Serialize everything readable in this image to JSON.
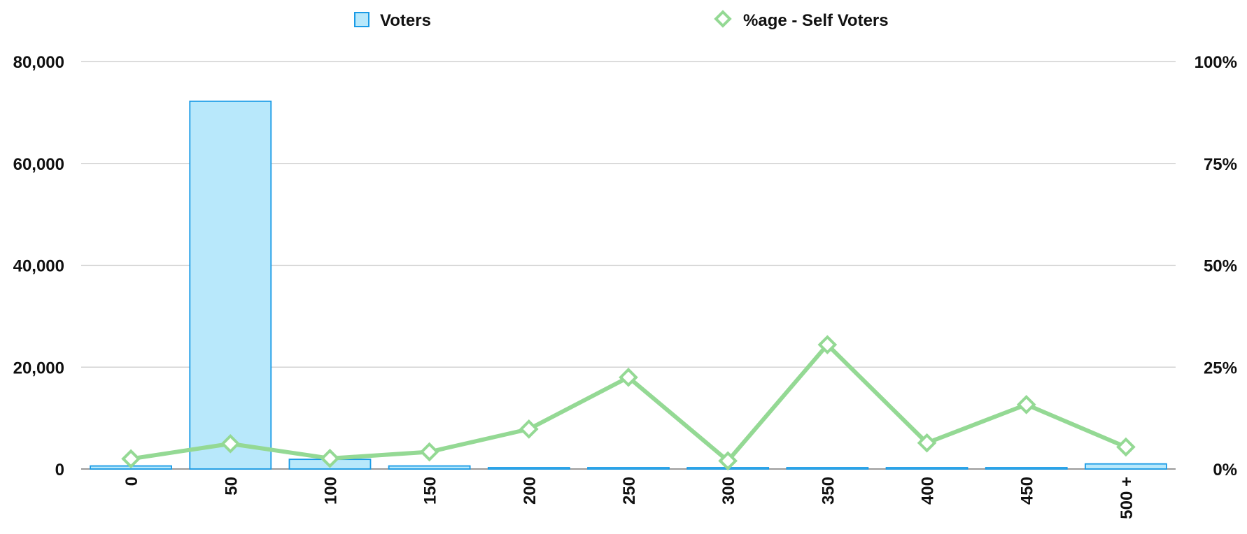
{
  "chart_data": {
    "type": "bar",
    "categories": [
      "0",
      "50",
      "100",
      "150",
      "200",
      "250",
      "300",
      "350",
      "400",
      "450",
      "500 +"
    ],
    "series": [
      {
        "name": "Voters",
        "type": "bar",
        "axis": "left",
        "values": [
          600,
          72200,
          1900,
          600,
          0,
          0,
          200,
          0,
          0,
          0,
          1000
        ],
        "color": "#b8e8fb",
        "stroke": "#1a9be6"
      },
      {
        "name": "%age - Self Voters",
        "type": "line",
        "axis": "right",
        "unit": "%",
        "values": [
          2.5,
          6.2,
          2.6,
          4.2,
          9.8,
          22.5,
          2.0,
          30.5,
          6.4,
          15.8,
          5.4
        ],
        "color": "#94d994"
      }
    ],
    "y_left": {
      "min": 0,
      "max": 80000,
      "ticks": [
        0,
        20000,
        40000,
        60000,
        80000
      ],
      "tick_labels": [
        "0",
        "20,000",
        "40,000",
        "60,000",
        "80,000"
      ]
    },
    "y_right": {
      "min": 0,
      "max": 100,
      "ticks": [
        0,
        25,
        50,
        75,
        100
      ],
      "tick_labels": [
        "0%",
        "25%",
        "50%",
        "75%",
        "100%"
      ]
    },
    "grid": true,
    "x_tick_rotation": -90,
    "legend": {
      "position": "top",
      "items": [
        "Voters",
        "%age - Self Voters"
      ]
    }
  }
}
